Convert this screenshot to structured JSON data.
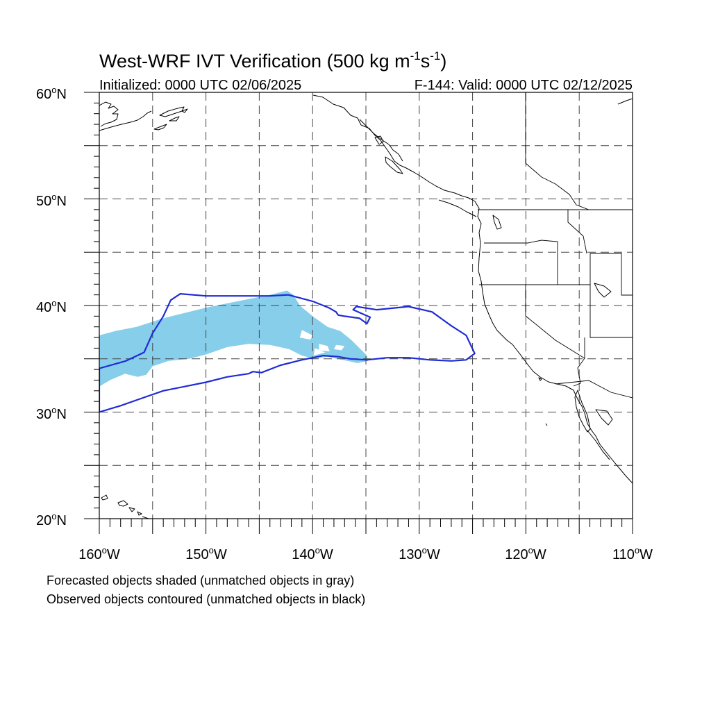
{
  "title": {
    "main": "West-WRF IVT Verification (500 kg m",
    "sup1": "-1",
    "mid": "s",
    "sup2": "-1",
    "end": ")"
  },
  "subtitle_left": "Initialized: 0000 UTC 02/06/2025",
  "subtitle_right": "F-144: Valid: 0000 UTC 02/12/2025",
  "lat_labels": [
    {
      "deg": "60",
      "suffix": "N"
    },
    {
      "deg": "50",
      "suffix": "N"
    },
    {
      "deg": "40",
      "suffix": "N"
    },
    {
      "deg": "30",
      "suffix": "N"
    },
    {
      "deg": "20",
      "suffix": "N"
    }
  ],
  "lon_labels": [
    {
      "deg": "160",
      "suffix": "W"
    },
    {
      "deg": "150",
      "suffix": "W"
    },
    {
      "deg": "140",
      "suffix": "W"
    },
    {
      "deg": "130",
      "suffix": "W"
    },
    {
      "deg": "120",
      "suffix": "W"
    },
    {
      "deg": "110",
      "suffix": "W"
    }
  ],
  "notes": [
    "Forecasted objects shaded (unmatched objects in gray)",
    "Observed objects contoured (unmatched objects in black)"
  ],
  "colors": {
    "forecast_fill": "#87CEEB",
    "observed_contour": "#1f2bd6",
    "grid": "#444444",
    "coastline": "#000000"
  },
  "map_extent": {
    "lon_min": -160,
    "lon_max": -110,
    "lat_min": 20,
    "lat_max": 60
  },
  "forecast_object": [
    [
      -160,
      37.2
    ],
    [
      -158.5,
      37.6
    ],
    [
      -156.5,
      38.0
    ],
    [
      -154,
      38.8
    ],
    [
      -152,
      39.3
    ],
    [
      -150,
      39.8
    ],
    [
      -148,
      40.2
    ],
    [
      -146,
      40.6
    ],
    [
      -144,
      41.0
    ],
    [
      -142.4,
      41.4
    ],
    [
      -141.8,
      41.0
    ],
    [
      -141.2,
      40.0
    ],
    [
      -140.0,
      39.0
    ],
    [
      -138.6,
      38.0
    ],
    [
      -137.4,
      37.6
    ],
    [
      -136.4,
      36.8
    ],
    [
      -135.5,
      35.9
    ],
    [
      -134.9,
      35.3
    ],
    [
      -134.8,
      34.8
    ],
    [
      -135.8,
      34.6
    ],
    [
      -137.2,
      34.9
    ],
    [
      -138.6,
      35.2
    ],
    [
      -139.8,
      35.0
    ],
    [
      -141.0,
      35.3
    ],
    [
      -142.2,
      35.9
    ],
    [
      -144,
      36.3
    ],
    [
      -146,
      36.4
    ],
    [
      -148,
      36.1
    ],
    [
      -150,
      35.4
    ],
    [
      -151.6,
      35.0
    ],
    [
      -153.5,
      34.8
    ],
    [
      -155.0,
      34.3
    ],
    [
      -155.6,
      33.5
    ],
    [
      -156.4,
      33.3
    ],
    [
      -157.6,
      33.6
    ],
    [
      -159.0,
      33.0
    ],
    [
      -160,
      32.4
    ]
  ],
  "observed_object": [
    [
      -160,
      34.1
    ],
    [
      -157.5,
      34.8
    ],
    [
      -155.8,
      35.6
    ],
    [
      -155.0,
      37.4
    ],
    [
      -154.0,
      39.0
    ],
    [
      -153.3,
      40.5
    ],
    [
      -152.4,
      41.1
    ],
    [
      -150,
      40.9
    ],
    [
      -147,
      40.9
    ],
    [
      -144,
      40.9
    ],
    [
      -142.3,
      41.0
    ],
    [
      -140.0,
      40.4
    ],
    [
      -138.5,
      39.8
    ],
    [
      -137.8,
      39.4
    ],
    [
      -137.6,
      39.1
    ],
    [
      -137.0,
      39.0
    ],
    [
      -135.6,
      38.8
    ],
    [
      -134.9,
      38.3
    ],
    [
      -134.6,
      38.9
    ],
    [
      -136.2,
      39.6
    ],
    [
      -135.9,
      39.9
    ],
    [
      -134.0,
      39.6
    ],
    [
      -131.0,
      39.9
    ],
    [
      -128.8,
      39.4
    ],
    [
      -127.0,
      38.1
    ],
    [
      -125.6,
      37.2
    ],
    [
      -124.8,
      35.5
    ],
    [
      -125.6,
      34.9
    ],
    [
      -127.0,
      34.8
    ],
    [
      -129.0,
      34.9
    ],
    [
      -131.0,
      35.1
    ],
    [
      -133.0,
      35.1
    ],
    [
      -134.9,
      34.9
    ],
    [
      -136.5,
      35.0
    ],
    [
      -137.6,
      35.2
    ],
    [
      -139.0,
      35.3
    ],
    [
      -141.0,
      34.9
    ],
    [
      -143.0,
      34.4
    ],
    [
      -144.8,
      33.7
    ],
    [
      -145.6,
      33.8
    ],
    [
      -146.0,
      33.6
    ],
    [
      -148.0,
      33.3
    ],
    [
      -150.0,
      32.8
    ],
    [
      -152.0,
      32.4
    ],
    [
      -154.0,
      32.0
    ],
    [
      -156.0,
      31.3
    ],
    [
      -158.0,
      30.6
    ],
    [
      -160,
      30.0
    ]
  ],
  "forecast_holes": [
    [
      [
        -141.0,
        37.7
      ],
      [
        -140.0,
        37.2
      ],
      [
        -140.2,
        36.8
      ],
      [
        -141.2,
        37.0
      ]
    ],
    [
      [
        -139.4,
        36.4
      ],
      [
        -138.6,
        36.2
      ],
      [
        -138.4,
        35.7
      ],
      [
        -139.4,
        35.8
      ]
    ],
    [
      [
        -137.8,
        36.3
      ],
      [
        -137.0,
        36.2
      ],
      [
        -137.3,
        35.8
      ],
      [
        -138.0,
        35.9
      ]
    ],
    [
      [
        -139.8,
        36.0
      ],
      [
        -138.8,
        35.6
      ],
      [
        -139.9,
        35.3
      ]
    ]
  ]
}
